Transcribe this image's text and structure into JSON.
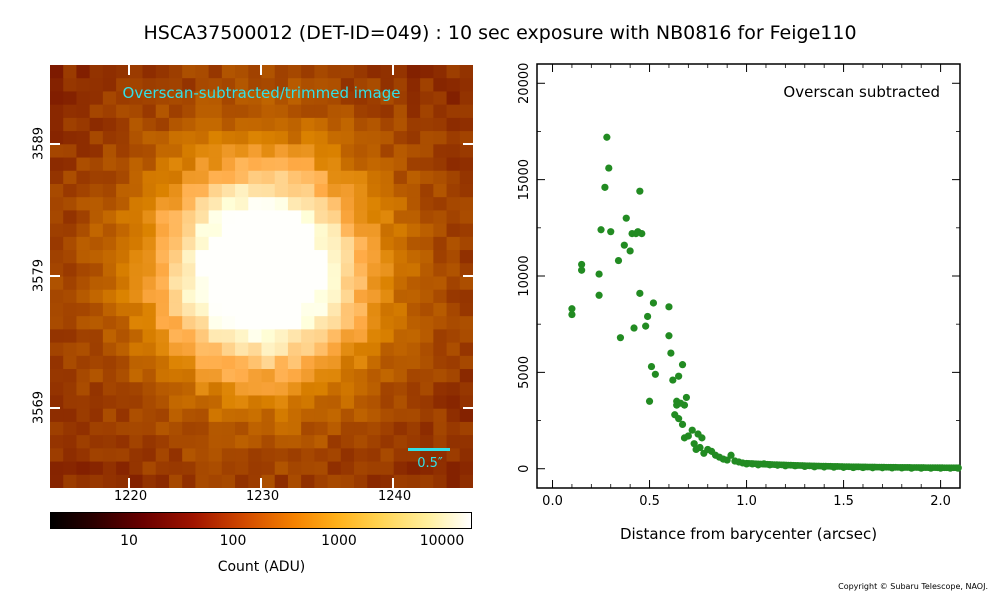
{
  "title": "HSCA37500012 (DET-ID=049) :  10 sec exposure with NB0816 for Feige110",
  "image_panel": {
    "label": "Overscan-subtracted/trimmed image",
    "scale_label": "0.5″",
    "x_ticks": [
      "1220",
      "1230",
      "1240"
    ],
    "y_ticks": [
      "3589",
      "3579",
      "3569"
    ],
    "accent_color": "#33e0e6"
  },
  "colorbar": {
    "label": "Count (ADU)",
    "ticks": [
      "10",
      "100",
      "1000",
      "10000"
    ],
    "colormap": "afmhot"
  },
  "copyright": "Copyright © Subaru Telescope, NAOJ.",
  "chart_data": {
    "type": "scatter",
    "title": "",
    "annotation": "Overscan subtracted",
    "xlabel": "Distance from barycenter (arcsec)",
    "ylabel": "",
    "xlim": [
      -0.08,
      2.1
    ],
    "ylim": [
      -1000,
      21000
    ],
    "x_ticks": [
      0.0,
      0.5,
      1.0,
      1.5,
      2.0
    ],
    "x_tick_labels": [
      "0.0",
      "0.5",
      "1.0",
      "1.5",
      "2.0"
    ],
    "y_ticks": [
      0,
      5000,
      10000,
      15000,
      20000
    ],
    "y_tick_labels": [
      "0",
      "5000",
      "10000",
      "15000",
      "20000"
    ],
    "marker_color": "#228b22",
    "x": [
      0.1,
      0.1,
      0.15,
      0.15,
      0.24,
      0.24,
      0.25,
      0.27,
      0.28,
      0.29,
      0.3,
      0.34,
      0.35,
      0.37,
      0.38,
      0.4,
      0.41,
      0.42,
      0.43,
      0.44,
      0.45,
      0.45,
      0.46,
      0.48,
      0.49,
      0.5,
      0.51,
      0.52,
      0.53,
      0.6,
      0.6,
      0.61,
      0.62,
      0.63,
      0.64,
      0.64,
      0.65,
      0.65,
      0.66,
      0.67,
      0.67,
      0.68,
      0.68,
      0.69,
      0.7,
      0.72,
      0.73,
      0.74,
      0.75,
      0.76,
      0.77,
      0.78,
      0.8,
      0.82,
      0.84,
      0.86,
      0.88,
      0.9,
      0.92,
      0.94,
      0.96,
      0.98,
      1.0,
      1.03,
      1.06,
      1.09,
      1.12,
      1.16,
      1.2,
      1.25,
      1.3,
      1.35,
      1.4,
      1.45,
      1.5,
      1.55,
      1.6,
      1.65,
      1.7,
      1.75,
      1.8,
      1.85,
      1.9,
      1.95,
      2.0,
      2.05,
      2.09
    ],
    "y": [
      8300,
      8000,
      10600,
      10300,
      10100,
      9000,
      12400,
      14600,
      17200,
      15600,
      12300,
      10800,
      6800,
      11600,
      13000,
      11300,
      12200,
      7300,
      12200,
      12300,
      9100,
      14400,
      12200,
      7400,
      7900,
      3500,
      5300,
      8600,
      4900,
      8400,
      6900,
      6000,
      4600,
      2800,
      3500,
      3300,
      2600,
      4800,
      3400,
      5400,
      2300,
      3300,
      1600,
      3700,
      1700,
      2000,
      1300,
      1000,
      1800,
      1100,
      1600,
      800,
      1000,
      900,
      700,
      600,
      500,
      450,
      700,
      400,
      350,
      300,
      250,
      250,
      200,
      250,
      200,
      180,
      150,
      150,
      120,
      100,
      90,
      80,
      70,
      60,
      60,
      50,
      50,
      40,
      40,
      30,
      30,
      30,
      30,
      30,
      30
    ]
  }
}
